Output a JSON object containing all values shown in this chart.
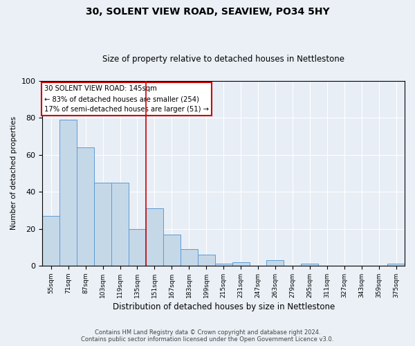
{
  "title": "30, SOLENT VIEW ROAD, SEAVIEW, PO34 5HY",
  "subtitle": "Size of property relative to detached houses in Nettlestone",
  "xlabel": "Distribution of detached houses by size in Nettlestone",
  "ylabel": "Number of detached properties",
  "categories": [
    "55sqm",
    "71sqm",
    "87sqm",
    "103sqm",
    "119sqm",
    "135sqm",
    "151sqm",
    "167sqm",
    "183sqm",
    "199sqm",
    "215sqm",
    "231sqm",
    "247sqm",
    "263sqm",
    "279sqm",
    "295sqm",
    "311sqm",
    "327sqm",
    "343sqm",
    "359sqm",
    "375sqm"
  ],
  "values": [
    27,
    79,
    64,
    45,
    45,
    20,
    31,
    17,
    9,
    6,
    1,
    2,
    0,
    3,
    0,
    1,
    0,
    0,
    0,
    0,
    1
  ],
  "bar_color": "#c5d8e8",
  "bar_edge_color": "#5b9bd5",
  "vline_x": 6.0,
  "annotation_line1": "30 SOLENT VIEW ROAD: 145sqm",
  "annotation_line2": "← 83% of detached houses are smaller (254)",
  "annotation_line3": "17% of semi-detached houses are larger (51) →",
  "annotation_box_color": "#ffffff",
  "annotation_box_edge": "#cc0000",
  "vline_color": "#cc0000",
  "ylim": [
    0,
    100
  ],
  "fig_background_color": "#eaf0f6",
  "ax_background_color": "#e8eef5",
  "grid_color": "#ffffff",
  "footer1": "Contains HM Land Registry data © Crown copyright and database right 2024.",
  "footer2": "Contains public sector information licensed under the Open Government Licence v3.0."
}
